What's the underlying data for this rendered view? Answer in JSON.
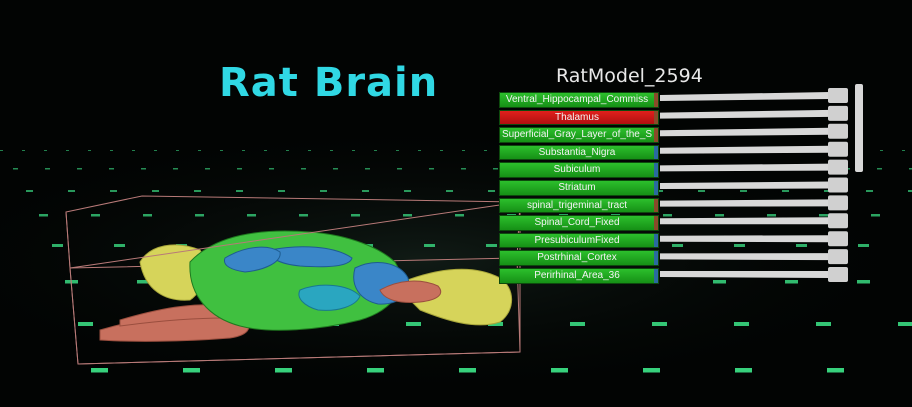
{
  "title": "Rat Brain",
  "model_name": "RatModel_2594",
  "structures": [
    {
      "label": "Ventral_Hippocampal_Commiss",
      "selected": false,
      "swatch": "#8a4a2a",
      "slider": 1.0
    },
    {
      "label": "Thalamus",
      "selected": true,
      "swatch": "#8a4a2a",
      "slider": 1.0
    },
    {
      "label": "Superficial_Gray_Layer_of_the_S",
      "selected": false,
      "swatch": "#8a4a2a",
      "slider": 1.0
    },
    {
      "label": "Substantia_Nigra",
      "selected": false,
      "swatch": "#2a6aa0",
      "slider": 1.0
    },
    {
      "label": "Subiculum",
      "selected": false,
      "swatch": "#2a6aa0",
      "slider": 1.0
    },
    {
      "label": "Striatum",
      "selected": false,
      "swatch": "#2a6aa0",
      "slider": 1.0
    },
    {
      "label": "spinal_trigeminal_tract",
      "selected": false,
      "swatch": "#8a4a2a",
      "slider": 1.0
    },
    {
      "label": "Spinal_Cord_Fixed",
      "selected": false,
      "swatch": "#8a4a2a",
      "slider": 1.0
    },
    {
      "label": "PresubiculumFixed",
      "selected": false,
      "swatch": "#2a6aa0",
      "slider": 1.0
    },
    {
      "label": "Postrhinal_Cortex",
      "selected": false,
      "swatch": "#2a6aa0",
      "slider": 1.0
    },
    {
      "label": "Perirhinal_Area_36",
      "selected": false,
      "swatch": "#2a6aa0",
      "slider": 1.0
    }
  ],
  "colors": {
    "background": "#020403",
    "title": "#30d8e4",
    "row_green": "#1fa61f",
    "row_selected": "#d41a16",
    "grid": "#3de88a",
    "slider_track": "#d8d8d8",
    "bounding_box": "#b87a78"
  }
}
